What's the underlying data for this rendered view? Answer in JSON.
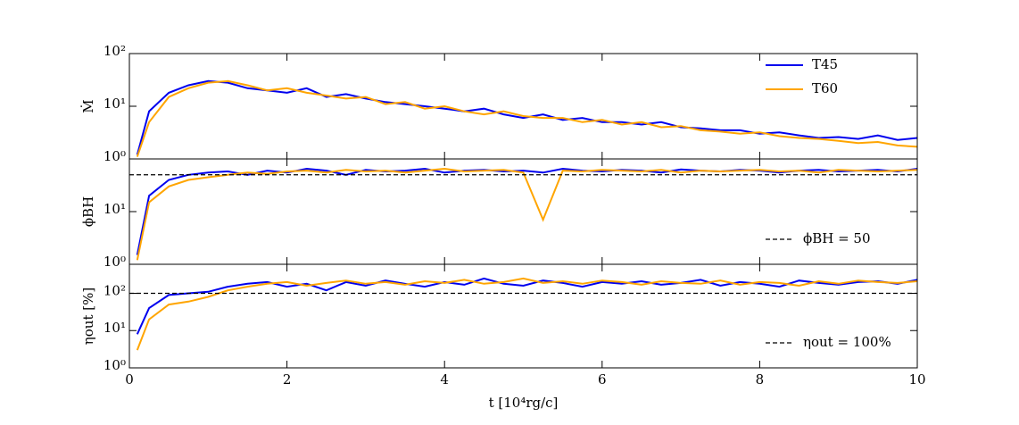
{
  "chart_data": [
    {
      "type": "line",
      "ylabel": "Ṁ",
      "log_scale": true,
      "legend": "upper right",
      "x": [
        0.1,
        0.25,
        0.5,
        0.75,
        1,
        1.25,
        1.5,
        1.75,
        2,
        2.25,
        2.5,
        2.75,
        3,
        3.25,
        3.5,
        3.75,
        4,
        4.25,
        4.5,
        4.75,
        5,
        5.25,
        5.5,
        5.75,
        6,
        6.25,
        6.5,
        6.75,
        7,
        7.25,
        7.5,
        7.75,
        8,
        8.25,
        8.5,
        8.75,
        9,
        9.25,
        9.5,
        9.75,
        10
      ],
      "series": [
        {
          "name": "T45",
          "color": "#0000ee",
          "values": [
            1.2,
            8,
            18,
            25,
            30,
            28,
            22,
            20,
            18,
            22,
            15,
            17,
            14,
            12,
            11,
            10,
            9,
            8,
            9,
            7,
            6,
            7,
            5.5,
            6,
            5,
            5,
            4.5,
            5,
            4,
            3.8,
            3.5,
            3.5,
            3,
            3.2,
            2.8,
            2.5,
            2.6,
            2.4,
            2.8,
            2.3,
            2.5
          ]
        },
        {
          "name": "T60",
          "color": "#ffa500",
          "values": [
            1.1,
            5,
            15,
            22,
            28,
            30,
            25,
            20,
            22,
            18,
            16,
            14,
            15,
            11,
            12,
            9,
            10,
            8,
            7,
            8,
            6.5,
            6,
            6,
            5,
            5.5,
            4.5,
            5,
            4,
            4.2,
            3.5,
            3.3,
            3,
            3.2,
            2.7,
            2.5,
            2.4,
            2.2,
            2,
            2.1,
            1.8,
            1.7
          ]
        }
      ],
      "xlim": [
        0,
        10
      ],
      "xticks": [
        0,
        2,
        4,
        6,
        8,
        10
      ],
      "ylim": [
        1,
        100
      ],
      "yticks": [
        {
          "value": 1,
          "label": "10⁰"
        },
        {
          "value": 10,
          "label": "10¹"
        },
        {
          "value": 100,
          "label": "10²"
        }
      ]
    },
    {
      "type": "line",
      "ylabel": "ϕBH",
      "log_scale": true,
      "x": [
        0.1,
        0.25,
        0.5,
        0.75,
        1,
        1.25,
        1.5,
        1.75,
        2,
        2.25,
        2.5,
        2.75,
        3,
        3.25,
        3.5,
        3.75,
        4,
        4.25,
        4.5,
        4.75,
        5,
        5.25,
        5.5,
        5.75,
        6,
        6.25,
        6.5,
        6.75,
        7,
        7.25,
        7.5,
        7.75,
        8,
        8.25,
        8.5,
        8.75,
        9,
        9.25,
        9.5,
        9.75,
        10
      ],
      "series": [
        {
          "color": "#0000ee",
          "values": [
            1.5,
            20,
            40,
            50,
            55,
            58,
            50,
            60,
            55,
            65,
            60,
            50,
            62,
            58,
            60,
            65,
            55,
            60,
            62,
            58,
            60,
            55,
            65,
            60,
            58,
            62,
            60,
            55,
            63,
            60,
            58,
            62,
            60,
            55,
            60,
            62,
            58,
            60,
            62,
            58,
            65
          ]
        },
        {
          "color": "#ffa500",
          "values": [
            1.2,
            15,
            30,
            40,
            45,
            50,
            55,
            52,
            58,
            60,
            55,
            62,
            58,
            60,
            55,
            60,
            65,
            58,
            60,
            62,
            55,
            7,
            60,
            58,
            62,
            60,
            58,
            62,
            55,
            60,
            58,
            60,
            62,
            58,
            60,
            55,
            62,
            60,
            58,
            60,
            62
          ]
        }
      ],
      "reference": {
        "value": 50,
        "label": "ϕBH = 50"
      },
      "xlim": [
        0,
        10
      ],
      "xticks": [
        0,
        2,
        4,
        6,
        8,
        10
      ],
      "ylim": [
        1,
        100
      ],
      "yticks": [
        {
          "value": 1,
          "label": "10⁰"
        },
        {
          "value": 10,
          "label": "10¹"
        }
      ]
    },
    {
      "type": "line",
      "ylabel": "ηout [%]",
      "xlabel": "t [10⁴rg/c]",
      "log_scale": true,
      "x": [
        0.1,
        0.25,
        0.5,
        0.75,
        1,
        1.25,
        1.5,
        1.75,
        2,
        2.25,
        2.5,
        2.75,
        3,
        3.25,
        3.5,
        3.75,
        4,
        4.25,
        4.5,
        4.75,
        5,
        5.25,
        5.5,
        5.75,
        6,
        6.25,
        6.5,
        6.75,
        7,
        7.25,
        7.5,
        7.75,
        8,
        8.25,
        8.5,
        8.75,
        9,
        9.25,
        9.5,
        9.75,
        10
      ],
      "series": [
        {
          "color": "#0000ee",
          "values": [
            8,
            40,
            90,
            100,
            110,
            150,
            180,
            200,
            150,
            180,
            120,
            200,
            160,
            220,
            180,
            150,
            200,
            170,
            250,
            180,
            160,
            220,
            190,
            150,
            200,
            180,
            210,
            170,
            190,
            230,
            160,
            200,
            180,
            150,
            220,
            190,
            170,
            200,
            210,
            180,
            230
          ]
        },
        {
          "color": "#ffa500",
          "values": [
            3,
            20,
            50,
            60,
            80,
            120,
            150,
            180,
            200,
            160,
            190,
            220,
            180,
            200,
            170,
            210,
            190,
            230,
            180,
            200,
            250,
            190,
            210,
            180,
            220,
            200,
            170,
            210,
            190,
            180,
            220,
            170,
            200,
            190,
            160,
            210,
            180,
            220,
            200,
            190,
            210
          ]
        }
      ],
      "reference": {
        "value": 100,
        "label": "ηout = 100%"
      },
      "xlim": [
        0,
        10
      ],
      "xticks": [
        0,
        2,
        4,
        6,
        8,
        10
      ],
      "ylim": [
        1,
        600
      ],
      "yticks": [
        {
          "value": 1,
          "label": "10⁰"
        },
        {
          "value": 10,
          "label": "10¹"
        },
        {
          "value": 100,
          "label": "10²"
        }
      ]
    }
  ]
}
